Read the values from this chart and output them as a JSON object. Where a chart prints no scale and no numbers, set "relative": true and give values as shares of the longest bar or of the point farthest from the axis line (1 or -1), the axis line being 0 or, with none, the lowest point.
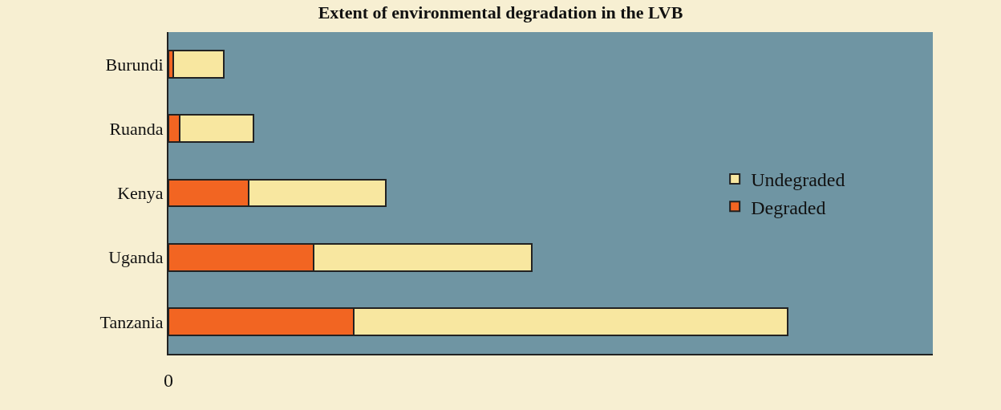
{
  "chart_data": {
    "type": "bar",
    "orientation": "horizontal",
    "stacked": true,
    "relative": true,
    "title": "Extent of environmental degradation in the LVB",
    "categories": [
      "Burundi",
      "Ruanda",
      "Kenya",
      "Uganda",
      "Tanzania"
    ],
    "series": [
      {
        "name": "Degraded",
        "color": "#f26522",
        "values": [
          0.008,
          0.018,
          0.129,
          0.235,
          0.299
        ]
      },
      {
        "name": "Undegraded",
        "color": "#f8e7a0",
        "values": [
          0.082,
          0.119,
          0.222,
          0.352,
          0.701
        ]
      }
    ],
    "annotations": [
      "0"
    ],
    "legend": "right",
    "grid": false
  }
}
